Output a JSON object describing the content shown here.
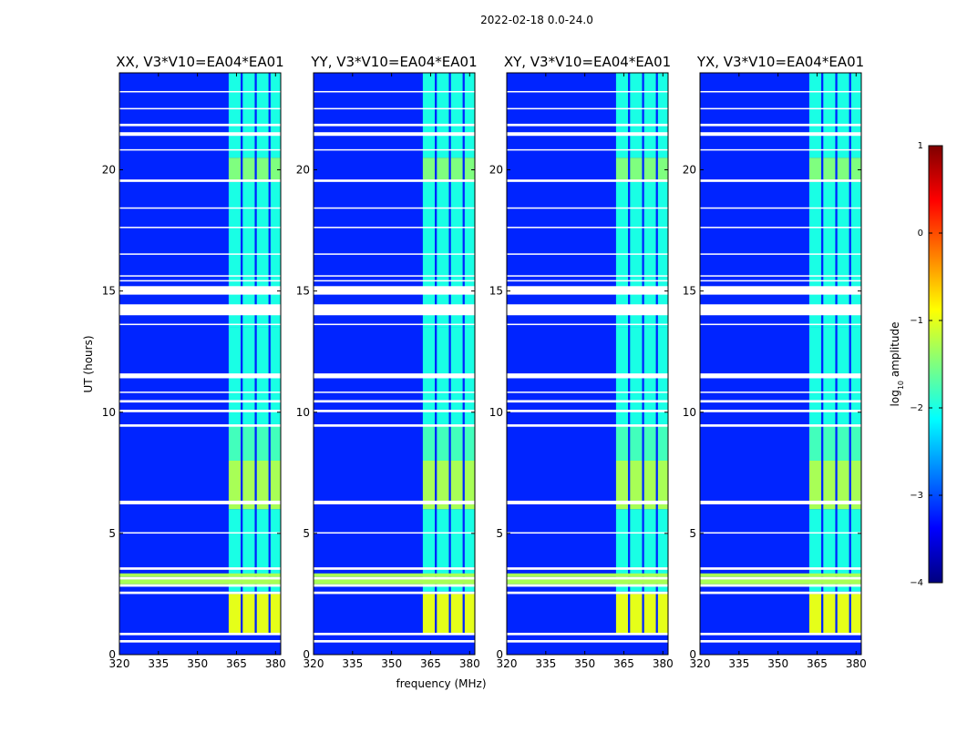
{
  "figure": {
    "suptitle": "2022-02-18 0.0-24.0"
  },
  "chart_data": {
    "type": "heatmap",
    "suptitle": "2022-02-18 0.0-24.0",
    "xlabel": "frequency (MHz)",
    "ylabel": "UT (hours)",
    "xlim": [
      320,
      382
    ],
    "ylim": [
      0,
      24
    ],
    "xticks": [
      320,
      335,
      350,
      365,
      380
    ],
    "yticks": [
      0,
      5,
      10,
      15,
      20
    ],
    "colorbar": {
      "label": "log10 amplitude",
      "label_main": "log",
      "label_sub": "10",
      "label_rest": " amplitude",
      "range": [
        -4,
        1
      ],
      "ticks": [
        1,
        0,
        -1,
        -2,
        -3,
        -4
      ],
      "tick_labels": [
        "1",
        "0",
        "−1",
        "−2",
        "−3",
        "−4"
      ],
      "colors": [
        "#00007f",
        "#0000ff",
        "#007fff",
        "#00ffff",
        "#7fff7f",
        "#ffff00",
        "#ff7f00",
        "#ff0000",
        "#7f0000"
      ]
    },
    "panels": [
      {
        "title": "XX, V3*V10=EA04*EA01"
      },
      {
        "title": "YY, V3*V10=EA04*EA01"
      },
      {
        "title": "XY, V3*V10=EA04*EA01"
      },
      {
        "title": "YX, V3*V10=EA04*EA01"
      }
    ],
    "background_level": -3.2,
    "band_edges_mhz": [
      362,
      366.6,
      367.4,
      372,
      372.8,
      377.3,
      378.1,
      382
    ],
    "band_level_by_ut": [
      {
        "from": 0.9,
        "to": 2.5,
        "level": -1.0
      },
      {
        "from": 2.6,
        "to": 6.0,
        "level": -2.0
      },
      {
        "from": 6.0,
        "to": 8.0,
        "level": -1.3
      },
      {
        "from": 8.0,
        "to": 9.5,
        "level": -1.8
      },
      {
        "from": 9.5,
        "to": 13.5,
        "level": -2.0
      },
      {
        "from": 13.5,
        "to": 19.5,
        "level": -2.0
      },
      {
        "from": 19.5,
        "to": 20.5,
        "level": -1.5
      },
      {
        "from": 20.5,
        "to": 24.0,
        "level": -2.0
      }
    ],
    "flagged_ut_ranges": [
      [
        0.5,
        0.6
      ],
      [
        0.8,
        0.9
      ],
      [
        2.5,
        2.6
      ],
      [
        2.8,
        2.9
      ],
      [
        3.1,
        3.2
      ],
      [
        3.5,
        3.6
      ],
      [
        5.0,
        5.05
      ],
      [
        6.2,
        6.35
      ],
      [
        9.4,
        9.5
      ],
      [
        10.0,
        10.1
      ],
      [
        10.4,
        10.5
      ],
      [
        10.8,
        10.85
      ],
      [
        11.4,
        11.6
      ],
      [
        13.6,
        13.65
      ],
      [
        14.0,
        14.45
      ],
      [
        14.85,
        15.2
      ],
      [
        15.4,
        15.45
      ],
      [
        15.6,
        15.65
      ],
      [
        16.5,
        16.55
      ],
      [
        17.6,
        17.65
      ],
      [
        18.4,
        18.45
      ],
      [
        19.5,
        19.6
      ],
      [
        20.8,
        20.85
      ],
      [
        21.4,
        21.55
      ],
      [
        21.8,
        21.9
      ],
      [
        22.5,
        22.55
      ],
      [
        23.2,
        23.25
      ]
    ],
    "flag_overlay_ut_ranges": [
      [
        2.9,
        3.1
      ],
      [
        3.2,
        3.35
      ]
    ],
    "flag_overlay_level": -1.3
  }
}
